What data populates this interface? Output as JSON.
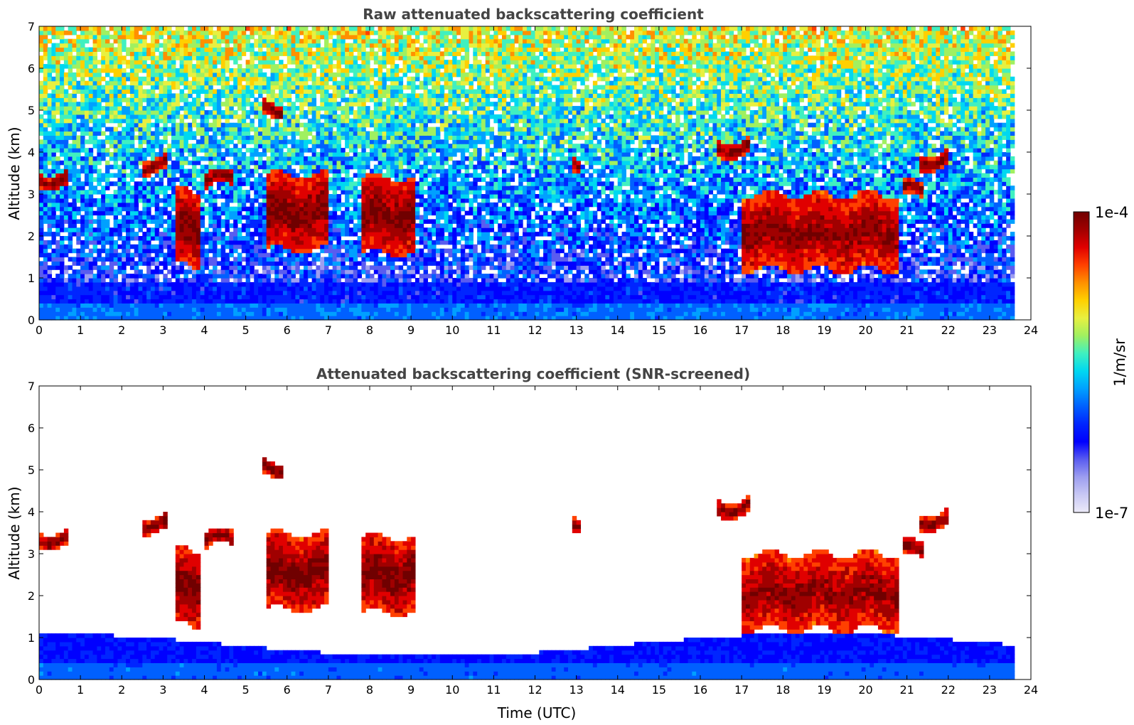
{
  "chart_data": [
    {
      "type": "heatmap",
      "title": "Raw attenuated backscattering coefficient",
      "xlabel": "",
      "ylabel": "Altitude (km)",
      "xlim": [
        0,
        24
      ],
      "ylim": [
        0,
        7
      ],
      "x_ticks": [
        "0",
        "1",
        "2",
        "3",
        "4",
        "5",
        "6",
        "7",
        "8",
        "9",
        "10",
        "11",
        "12",
        "13",
        "14",
        "15",
        "16",
        "17",
        "18",
        "19",
        "20",
        "21",
        "22",
        "23",
        "24"
      ],
      "y_ticks": [
        "0",
        "1",
        "2",
        "3",
        "4",
        "5",
        "6",
        "7"
      ],
      "data_end_time": 23.6,
      "features": [
        {
          "kind": "cloud",
          "t0": 0.0,
          "t1": 0.7,
          "alt": 3.35,
          "intensity": 1.0
        },
        {
          "kind": "cloud",
          "t0": 2.5,
          "t1": 3.1,
          "alt": 3.7,
          "intensity": 1.0
        },
        {
          "kind": "cloud",
          "t0": 3.3,
          "t1": 3.9,
          "alt": 2.15,
          "intensity": 1.0
        },
        {
          "kind": "cloud",
          "t0": 4.0,
          "t1": 4.7,
          "alt": 3.35,
          "intensity": 1.0
        },
        {
          "kind": "cloud",
          "t0": 5.4,
          "t1": 5.9,
          "alt": 5.05,
          "intensity": 1.0
        },
        {
          "kind": "cloud",
          "t0": 5.5,
          "t1": 7.0,
          "alt": 2.57,
          "intensity": 1.0
        },
        {
          "kind": "cloud",
          "t0": 7.8,
          "t1": 9.1,
          "alt": 2.5,
          "intensity": 1.0
        },
        {
          "kind": "cloud",
          "t0": 12.9,
          "t1": 13.1,
          "alt": 3.72,
          "intensity": 1.0
        },
        {
          "kind": "cloud",
          "t0": 16.4,
          "t1": 17.2,
          "alt": 4.1,
          "intensity": 1.0
        },
        {
          "kind": "cloud",
          "t0": 17.0,
          "t1": 20.8,
          "alt": 2.1,
          "intensity": 0.95
        },
        {
          "kind": "cloud",
          "t0": 20.9,
          "t1": 21.4,
          "alt": 3.1,
          "intensity": 1.0
        },
        {
          "kind": "cloud",
          "t0": 21.3,
          "t1": 22.0,
          "alt": 3.8,
          "intensity": 1.0
        }
      ],
      "boundary_layer_top_km": 0.9
    },
    {
      "type": "heatmap",
      "title": "Attenuated backscattering coefficient (SNR-screened)",
      "xlabel": "Time (UTC)",
      "ylabel": "Altitude (km)",
      "xlim": [
        0,
        24
      ],
      "ylim": [
        0,
        7
      ],
      "x_ticks": [
        "0",
        "1",
        "2",
        "3",
        "4",
        "5",
        "6",
        "7",
        "8",
        "9",
        "10",
        "11",
        "12",
        "13",
        "14",
        "15",
        "16",
        "17",
        "18",
        "19",
        "20",
        "21",
        "22",
        "23",
        "24"
      ],
      "y_ticks": [
        "0",
        "1",
        "2",
        "3",
        "4",
        "5",
        "6",
        "7"
      ],
      "data_end_time": 23.6,
      "boundary_layer_top_km": 1.1
    }
  ],
  "colorbar": {
    "label": "1/m/sr",
    "max_label": "1e-4",
    "min_label": "1e-7",
    "colors": [
      "#eceaf8",
      "#c8c8f4",
      "#9d9ef0",
      "#5a5cf0",
      "#0000ff",
      "#0025ff",
      "#0060ff",
      "#00a0ff",
      "#00d8f0",
      "#40f0c0",
      "#a0f060",
      "#e8f040",
      "#ffd000",
      "#ff9000",
      "#ff4000",
      "#e00000",
      "#a00000",
      "#700000"
    ]
  }
}
